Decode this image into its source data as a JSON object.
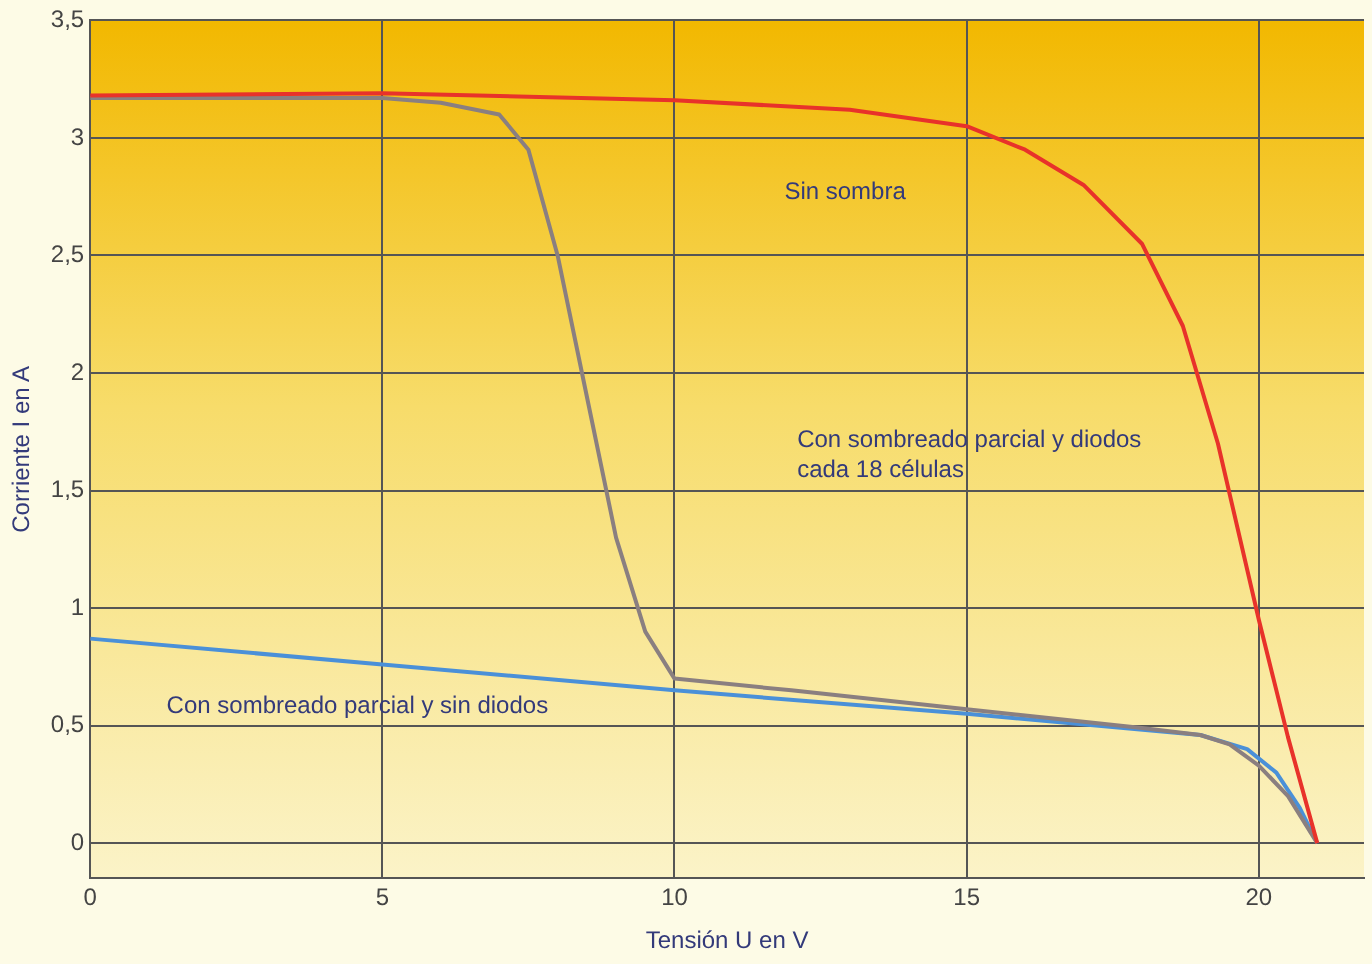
{
  "chart_data": {
    "type": "line",
    "xlabel": "Tensión U en V",
    "ylabel": "Corriente I en A",
    "xlim": [
      0,
      21.8
    ],
    "ylim": [
      -0.15,
      3.5
    ],
    "xticks": [
      0,
      5,
      10,
      15,
      20
    ],
    "yticks": [
      0,
      {
        "value": 0.5,
        "label": "0,5"
      },
      1,
      {
        "value": 1.5,
        "label": "1,5"
      },
      2,
      {
        "value": 2.5,
        "label": "2,5"
      },
      3,
      {
        "value": 3.5,
        "label": "3,5"
      }
    ],
    "grid": true,
    "legend": false,
    "marker": "none",
    "line_style": "solid",
    "series": [
      {
        "color": "#e8322a",
        "x": [
          0,
          5,
          10,
          13,
          15,
          16,
          17,
          18,
          18.7,
          19.3,
          20,
          20.5,
          21
        ],
        "values": [
          3.18,
          3.19,
          3.16,
          3.12,
          3.05,
          2.95,
          2.8,
          2.55,
          2.2,
          1.7,
          0.95,
          0.45,
          0
        ]
      },
      {
        "color": "#8a7f80",
        "x": [
          0,
          5,
          6,
          7,
          7.5,
          8,
          8.5,
          9,
          9.5,
          10,
          12,
          15,
          18,
          19,
          19.5,
          20,
          20.5,
          21
        ],
        "values": [
          3.17,
          3.17,
          3.15,
          3.1,
          2.95,
          2.5,
          1.9,
          1.3,
          0.9,
          0.7,
          0.65,
          0.57,
          0.49,
          0.46,
          0.42,
          0.33,
          0.2,
          0
        ]
      },
      {
        "color": "#4a90d8",
        "x": [
          0,
          5,
          10,
          15,
          19,
          19.8,
          20.3,
          20.7,
          21
        ],
        "values": [
          0.87,
          0.76,
          0.65,
          0.55,
          0.46,
          0.4,
          0.3,
          0.15,
          0
        ]
      }
    ],
    "annotations": [
      "Sin sombra",
      "Con sombreado parcial y diodos\ncada 18 células",
      "Con sombreado parcial y sin diodos"
    ]
  }
}
